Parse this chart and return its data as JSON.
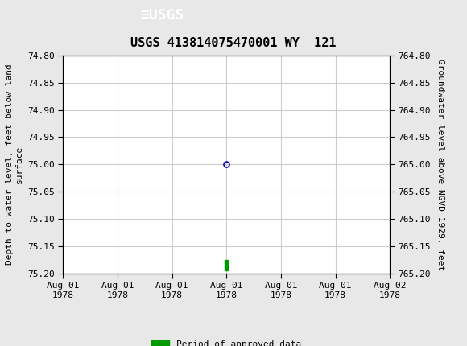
{
  "title": "USGS 413814075470001 WY  121",
  "title_fontsize": 11,
  "header_color": "#1a6b3c",
  "background_color": "#e8e8e8",
  "plot_bg_color": "#ffffff",
  "left_ylabel": "Depth to water level, feet below land\nsurface",
  "right_ylabel": "Groundwater level above NGVD 1929, feet",
  "ylabel_fontsize": 8,
  "ylim_left": [
    74.8,
    75.2
  ],
  "ylim_right": [
    765.2,
    764.8
  ],
  "yticks_left": [
    74.8,
    74.85,
    74.9,
    74.95,
    75.0,
    75.05,
    75.1,
    75.15,
    75.2
  ],
  "yticks_right": [
    765.2,
    765.15,
    765.1,
    765.05,
    765.0,
    764.95,
    764.9,
    764.85,
    764.8
  ],
  "xlim": [
    0,
    6
  ],
  "xtick_positions": [
    0,
    1,
    2,
    3,
    4,
    5,
    6
  ],
  "xtick_labels": [
    "Aug 01\n1978",
    "Aug 01\n1978",
    "Aug 01\n1978",
    "Aug 01\n1978",
    "Aug 01\n1978",
    "Aug 01\n1978",
    "Aug 02\n1978"
  ],
  "grid_color": "#cccccc",
  "data_point_x": 3,
  "data_point_y": 75.0,
  "data_point_color": "#0000bb",
  "data_point_marker": "o",
  "data_point_marker_size": 5,
  "bar_x": 3.0,
  "bar_y": 75.185,
  "bar_color": "#009900",
  "bar_width": 0.06,
  "bar_height": 0.018,
  "legend_label": "Period of approved data",
  "legend_color": "#009900",
  "tick_fontsize": 8,
  "font_family": "monospace"
}
